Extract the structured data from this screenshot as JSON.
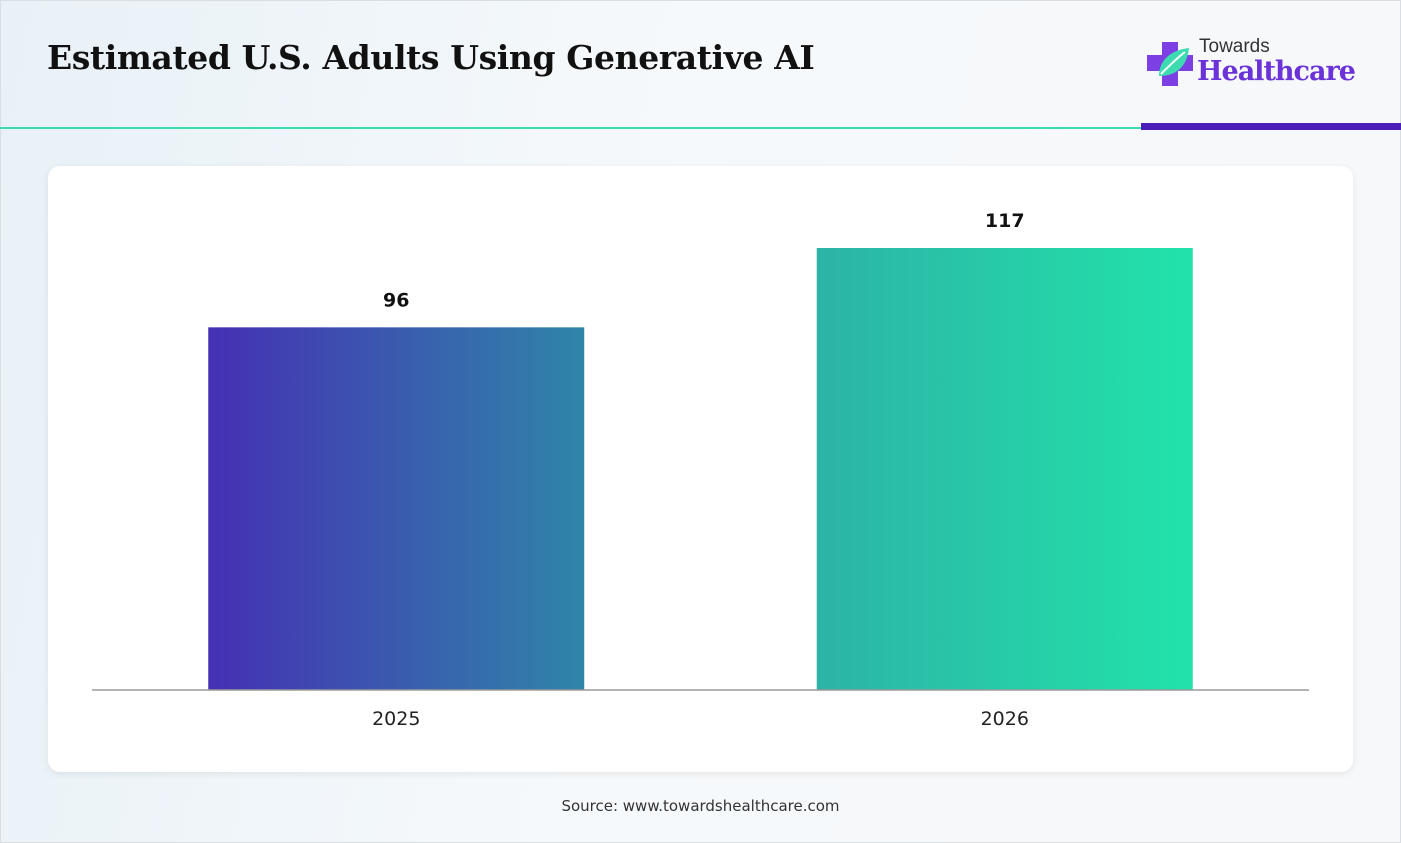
{
  "header": {
    "title": "Estimated U.S. Adults Using Generative AI"
  },
  "logo": {
    "top_text": "Towards",
    "main_text": "Healthcare",
    "icon": "medical-cross-leaf-icon",
    "colors": {
      "cross": "#7b3fe4",
      "leaf": "#3ddcb0",
      "text": "#6a32d8"
    }
  },
  "colors": {
    "accent_green": "#3ddcb0",
    "accent_purple": "#4a1fb8"
  },
  "chart_data": {
    "type": "bar",
    "categories": [
      "2025",
      "2026"
    ],
    "values": [
      96,
      117
    ],
    "data_labels": [
      "96",
      "117"
    ],
    "title": "",
    "xlabel": "",
    "ylabel": "",
    "ylim": [
      0,
      117
    ],
    "grid": false,
    "legend": "none",
    "bar_gradients": [
      [
        "#4530b4",
        "#2f85a9"
      ],
      [
        "#2cb3a6",
        "#22e3aa"
      ]
    ]
  },
  "footer": {
    "source": "Source: www.towardshealthcare.com"
  }
}
